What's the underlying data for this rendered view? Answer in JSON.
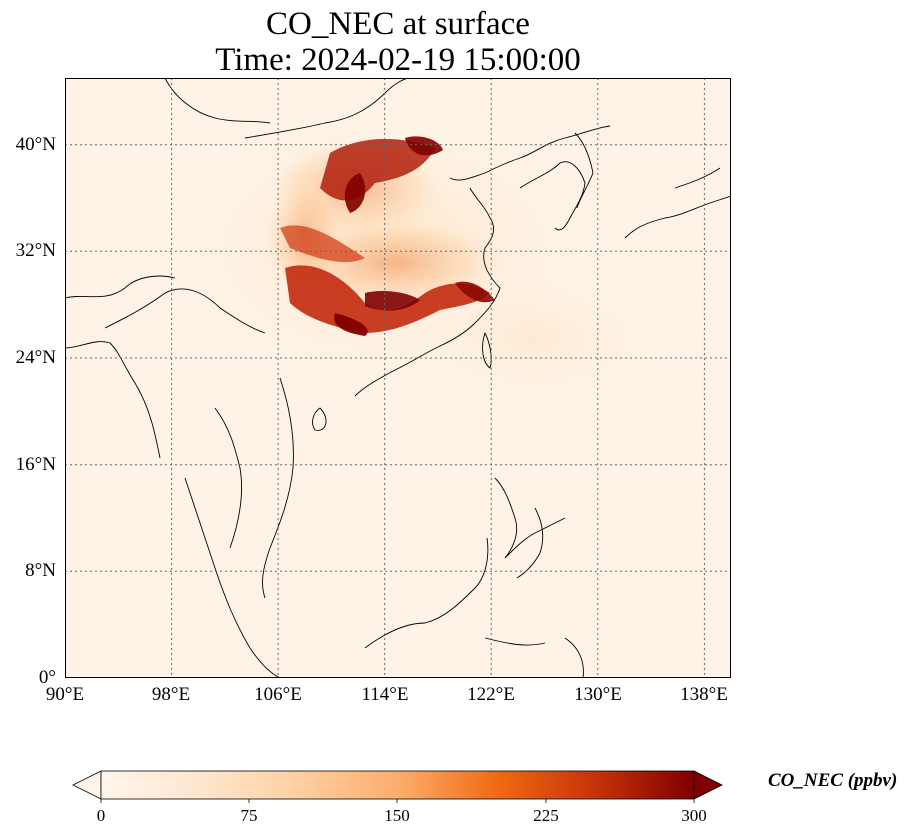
{
  "title_line1": "CO_NEC at surface",
  "title_line2": "Time: 2024-02-19 15:00:00",
  "lat_ticks": [
    "40°N",
    "32°N",
    "24°N",
    "16°N",
    "8°N",
    "0°"
  ],
  "lon_ticks": [
    "90°E",
    "98°E",
    "106°E",
    "114°E",
    "122°E",
    "130°E",
    "138°E"
  ],
  "colorbar": {
    "label": "CO_NEC (ppbv)",
    "ticks": [
      "0",
      "75",
      "150",
      "225",
      "300"
    ],
    "colors": [
      "#fff5eb",
      "#fdd49e",
      "#fdae6b",
      "#f16913",
      "#d94801",
      "#a63603",
      "#7f0000"
    ]
  },
  "map_extent": {
    "lon_min": 90,
    "lon_max": 140,
    "lat_min": 0,
    "lat_max": 45
  },
  "plume_hotspots": [
    {
      "lon": 113.0,
      "lat": 38.0,
      "level": "high"
    },
    {
      "lon": 116.5,
      "lat": 39.8,
      "level": "high"
    },
    {
      "lon": 112.0,
      "lat": 28.0,
      "level": "high"
    },
    {
      "lon": 119.0,
      "lat": 29.8,
      "level": "high"
    },
    {
      "lon": 108.5,
      "lat": 32.5,
      "level": "medium"
    },
    {
      "lon": 116.0,
      "lat": 33.0,
      "level": "medium"
    }
  ]
}
